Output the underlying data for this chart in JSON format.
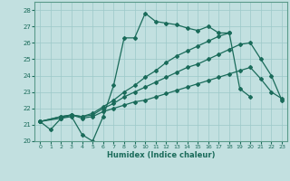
{
  "title": "",
  "xlabel": "Humidex (Indice chaleur)",
  "bg_color": "#c2e0e0",
  "line_color": "#1a6b5a",
  "grid_color": "#9cc8c8",
  "xlim": [
    -0.5,
    23.5
  ],
  "ylim": [
    20,
    28.5
  ],
  "xticks": [
    0,
    1,
    2,
    3,
    4,
    5,
    6,
    7,
    8,
    9,
    10,
    11,
    12,
    13,
    14,
    15,
    16,
    17,
    18,
    19,
    20,
    21,
    22,
    23
  ],
  "yticks": [
    20,
    21,
    22,
    23,
    24,
    25,
    26,
    27,
    28
  ],
  "series": [
    {
      "x": [
        0,
        1,
        2,
        3,
        4,
        5,
        6,
        7,
        8,
        9,
        10,
        11,
        12,
        13,
        14,
        15,
        16,
        17,
        18,
        19,
        20
      ],
      "y": [
        21.2,
        20.7,
        21.4,
        21.5,
        20.4,
        20.0,
        21.5,
        23.4,
        26.3,
        26.3,
        27.8,
        27.3,
        27.2,
        27.1,
        26.9,
        26.75,
        27.0,
        26.6,
        26.6,
        23.2,
        22.7
      ]
    },
    {
      "x": [
        0,
        2,
        3,
        4,
        5,
        6,
        7,
        8,
        9,
        10,
        11,
        12,
        13,
        14,
        15,
        16,
        17,
        18,
        19,
        20,
        21,
        22,
        23
      ],
      "y": [
        21.2,
        21.4,
        21.6,
        21.4,
        21.5,
        21.8,
        22.0,
        22.2,
        22.4,
        22.5,
        22.7,
        22.9,
        23.1,
        23.3,
        23.5,
        23.7,
        23.9,
        24.1,
        24.3,
        24.5,
        23.8,
        23.0,
        22.6
      ]
    },
    {
      "x": [
        0,
        2,
        3,
        4,
        5,
        6,
        7,
        8,
        9,
        10,
        11,
        12,
        13,
        14,
        15,
        16,
        17,
        18,
        19,
        20,
        21,
        22,
        23
      ],
      "y": [
        21.2,
        21.5,
        21.6,
        21.5,
        21.6,
        22.0,
        22.3,
        22.7,
        23.0,
        23.3,
        23.6,
        23.9,
        24.2,
        24.5,
        24.7,
        25.0,
        25.3,
        25.6,
        25.9,
        26.0,
        25.0,
        24.0,
        22.5
      ]
    },
    {
      "x": [
        0,
        2,
        3,
        4,
        5,
        6,
        7,
        8,
        9,
        10,
        11,
        12,
        13,
        14,
        15,
        16,
        17,
        18
      ],
      "y": [
        21.2,
        21.5,
        21.6,
        21.5,
        21.7,
        22.1,
        22.5,
        23.0,
        23.4,
        23.9,
        24.3,
        24.8,
        25.2,
        25.5,
        25.8,
        26.1,
        26.4,
        26.6
      ]
    }
  ]
}
